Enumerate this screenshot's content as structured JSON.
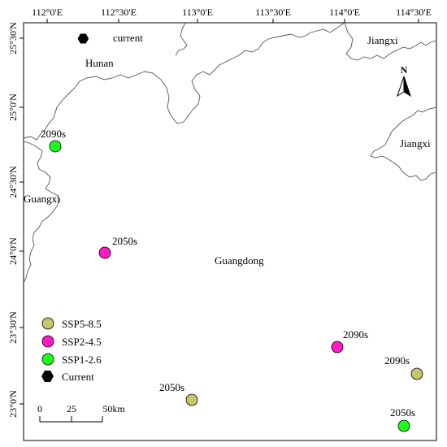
{
  "map": {
    "top_ticks": [
      "112°0'E",
      "112°30'E",
      "113°0'E",
      "113°30'E",
      "114°0'E",
      "114°30'E"
    ],
    "left_ticks": [
      "25°30'N",
      "25°0'N",
      "24°30'N",
      "24°0'N",
      "23°30'N",
      "23°0'N"
    ],
    "provinces": {
      "hunan": "Hunan",
      "jiangxi_top": "Jiangxi",
      "jiangxi_right": "Jiangxi",
      "guangxi": "Guangxi",
      "guangdong": "Guangdong"
    },
    "north_arrow": "N",
    "scale_bar": {
      "ticks": [
        "0",
        "25",
        "50km"
      ]
    },
    "points": {
      "current": {
        "label": "current",
        "scenario": "Current"
      },
      "ssp126_2090s": {
        "label": "2090s",
        "scenario": "SSP1-2.6"
      },
      "ssp245_2050s": {
        "label": "2050s",
        "scenario": "SSP2-4.5"
      },
      "ssp245_2090s": {
        "label": "2090s",
        "scenario": "SSP2-4.5"
      },
      "ssp585_2090s": {
        "label": "2090s",
        "scenario": "SSP5-8.5"
      },
      "ssp585_2050s": {
        "label": "2050s",
        "scenario": "SSP5-8.5"
      },
      "ssp126_2050s": {
        "label": "2050s",
        "scenario": "SSP1-2.6"
      }
    },
    "legend": [
      {
        "label": "SSP5-8.5",
        "color": "#c8c46c"
      },
      {
        "label": "SSP2-4.5",
        "color": "#ff1ac6"
      },
      {
        "label": "SSP1-2.6",
        "color": "#1aff1a"
      },
      {
        "label": "Current",
        "color": "#000000"
      }
    ]
  }
}
